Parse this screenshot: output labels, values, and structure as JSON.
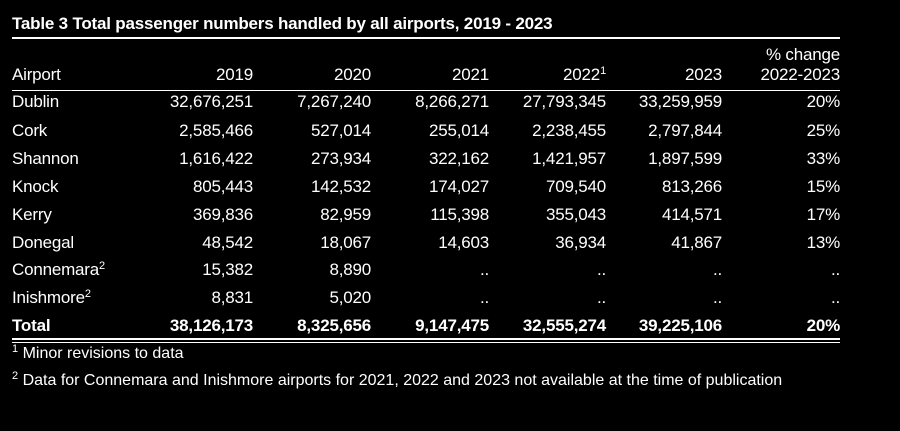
{
  "title": "Table 3  Total passenger numbers handled by all airports, 2019 - 2023",
  "header": {
    "airport": "Airport",
    "y2019": "2019",
    "y2020": "2020",
    "y2021": "2021",
    "y2022": "2022",
    "y2022_sup": "1",
    "y2023": "2023",
    "change_line1": "% change",
    "change_line2": "2022-2023"
  },
  "rows": [
    {
      "airport": "Dublin",
      "sup": "",
      "v2019": "32,676,251",
      "v2020": "7,267,240",
      "v2021": "8,266,271",
      "v2022": "27,793,345",
      "v2023": "33,259,959",
      "change": "20%"
    },
    {
      "airport": "Cork",
      "sup": "",
      "v2019": "2,585,466",
      "v2020": "527,014",
      "v2021": "255,014",
      "v2022": "2,238,455",
      "v2023": "2,797,844",
      "change": "25%"
    },
    {
      "airport": "Shannon",
      "sup": "",
      "v2019": "1,616,422",
      "v2020": "273,934",
      "v2021": "322,162",
      "v2022": "1,421,957",
      "v2023": "1,897,599",
      "change": "33%"
    },
    {
      "airport": "Knock",
      "sup": "",
      "v2019": "805,443",
      "v2020": "142,532",
      "v2021": "174,027",
      "v2022": "709,540",
      "v2023": "813,266",
      "change": "15%"
    },
    {
      "airport": "Kerry",
      "sup": "",
      "v2019": "369,836",
      "v2020": "82,959",
      "v2021": "115,398",
      "v2022": "355,043",
      "v2023": "414,571",
      "change": "17%"
    },
    {
      "airport": "Donegal",
      "sup": "",
      "v2019": "48,542",
      "v2020": "18,067",
      "v2021": "14,603",
      "v2022": "36,934",
      "v2023": "41,867",
      "change": "13%"
    },
    {
      "airport": "Connemara",
      "sup": "2",
      "v2019": "15,382",
      "v2020": "8,890",
      "v2021": "..",
      "v2022": "..",
      "v2023": "..",
      "change": ".."
    },
    {
      "airport": "Inishmore",
      "sup": "2",
      "v2019": "8,831",
      "v2020": "5,020",
      "v2021": "..",
      "v2022": "..",
      "v2023": "..",
      "change": ".."
    }
  ],
  "total": {
    "airport": "Total",
    "v2019": "38,126,173",
    "v2020": "8,325,656",
    "v2021": "9,147,475",
    "v2022": "32,555,274",
    "v2023": "39,225,106",
    "change": "20%"
  },
  "footnotes": [
    {
      "mark": "1",
      "text": " Minor revisions to data"
    },
    {
      "mark": "2",
      "text": " Data for Connemara and Inishmore airports for 2021, 2022 and 2023 not available at the time of publication"
    }
  ]
}
